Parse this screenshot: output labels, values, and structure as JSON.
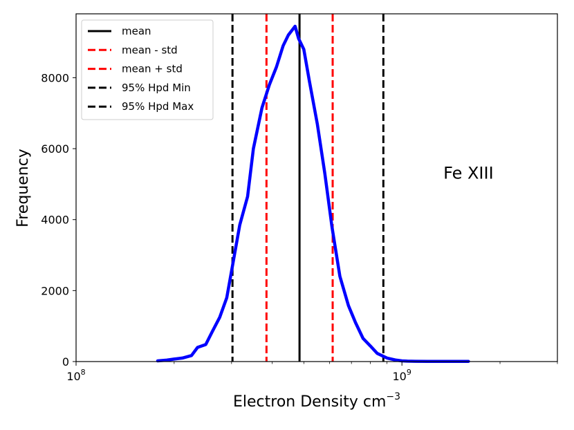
{
  "chart_data": {
    "type": "line",
    "x_scale": "log",
    "xlabel": "Electron Density cm",
    "xlabel_exponent": "−3",
    "ylabel": "Frequency",
    "xlim": [
      100000000,
      3000000000
    ],
    "ylim": [
      0,
      9800
    ],
    "grid": false,
    "x_ticks": [
      {
        "value": 100000000,
        "base": "10",
        "exp": "8"
      },
      {
        "value": 1000000000,
        "base": "10",
        "exp": "9"
      }
    ],
    "y_ticks": [
      0,
      2000,
      4000,
      6000,
      8000
    ],
    "series": [
      {
        "name": "distribution",
        "color": "#0000ff",
        "x": [
          178000000,
          190000000,
          200000000,
          212000000,
          226000000,
          236000000,
          250000000,
          262000000,
          276000000,
          290000000,
          302000000,
          318000000,
          336000000,
          350000000,
          372000000,
          392000000,
          412000000,
          432000000,
          448000000,
          470000000,
          482000000,
          500000000,
          520000000,
          550000000,
          580000000,
          610000000,
          645000000,
          685000000,
          720000000,
          760000000,
          800000000,
          840000000,
          900000000,
          960000000,
          1000000000,
          1040000000,
          1100000000,
          1200000000,
          1300000000,
          1400000000,
          1600000000
        ],
        "y": [
          20,
          40,
          70,
          100,
          170,
          400,
          480,
          850,
          1250,
          1800,
          2700,
          3850,
          4650,
          6000,
          7150,
          7800,
          8300,
          8900,
          9200,
          9450,
          9100,
          8800,
          7900,
          6700,
          5300,
          3800,
          2400,
          1580,
          1100,
          650,
          440,
          230,
          100,
          40,
          20,
          12,
          8,
          5,
          5,
          5,
          5
        ]
      }
    ],
    "vlines": [
      {
        "label": "mean",
        "x": 485000000,
        "color": "#000000",
        "style": "solid"
      },
      {
        "label": "mean - std",
        "x": 384000000,
        "color": "#ff0000",
        "style": "dashed"
      },
      {
        "label": "mean + std",
        "x": 613000000,
        "color": "#ff0000",
        "style": "dashed"
      },
      {
        "label": "95% Hpd Min",
        "x": 302000000,
        "color": "#000000",
        "style": "dashed"
      },
      {
        "label": "95% Hpd Max",
        "x": 877000000,
        "color": "#000000",
        "style": "dashed"
      }
    ],
    "legend_position": "top-left",
    "annotation": {
      "text": "Fe XIII",
      "x": 1600000000,
      "y": 5150
    }
  }
}
